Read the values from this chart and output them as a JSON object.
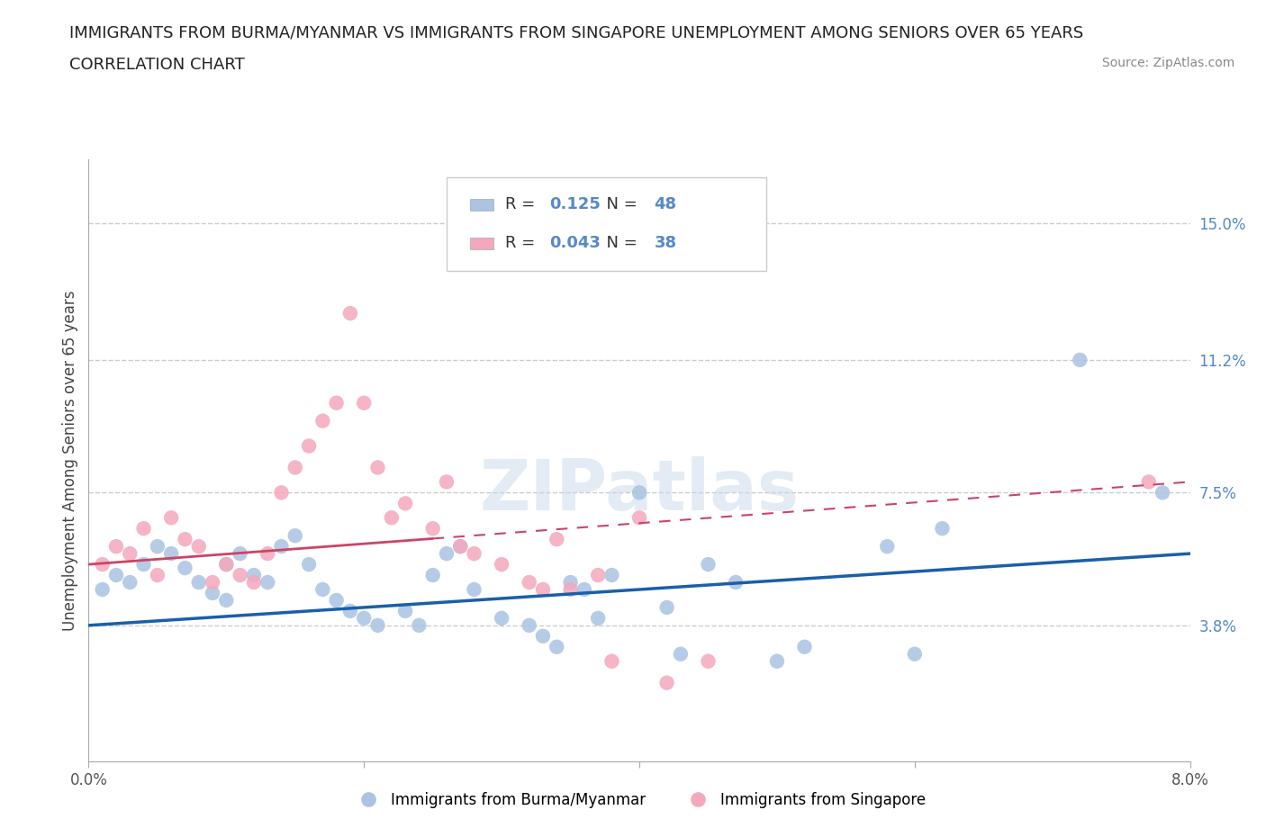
{
  "title_line1": "IMMIGRANTS FROM BURMA/MYANMAR VS IMMIGRANTS FROM SINGAPORE UNEMPLOYMENT AMONG SENIORS OVER 65 YEARS",
  "title_line2": "CORRELATION CHART",
  "source_text": "Source: ZipAtlas.com",
  "ylabel": "Unemployment Among Seniors over 65 years",
  "xlim": [
    0.0,
    0.08
  ],
  "ylim": [
    0.0,
    0.168
  ],
  "y_tick_labels_right": [
    "15.0%",
    "11.2%",
    "7.5%",
    "3.8%"
  ],
  "y_tick_values_right": [
    0.15,
    0.112,
    0.075,
    0.038
  ],
  "R_burma": 0.125,
  "N_burma": 48,
  "R_singapore": 0.043,
  "N_singapore": 38,
  "color_burma": "#aac4e2",
  "color_singapore": "#f4a8be",
  "color_burma_line": "#1a5faa",
  "color_singapore_line": "#cc4466",
  "legend_label_burma": "Immigrants from Burma/Myanmar",
  "legend_label_singapore": "Immigrants from Singapore",
  "watermark": "ZIPatlas",
  "burma_x": [
    0.001,
    0.002,
    0.003,
    0.004,
    0.005,
    0.006,
    0.007,
    0.008,
    0.009,
    0.01,
    0.01,
    0.011,
    0.012,
    0.013,
    0.014,
    0.015,
    0.016,
    0.017,
    0.018,
    0.019,
    0.02,
    0.021,
    0.023,
    0.024,
    0.025,
    0.026,
    0.027,
    0.028,
    0.03,
    0.032,
    0.033,
    0.034,
    0.035,
    0.036,
    0.037,
    0.038,
    0.04,
    0.042,
    0.043,
    0.045,
    0.047,
    0.05,
    0.052,
    0.058,
    0.06,
    0.062,
    0.072,
    0.078
  ],
  "burma_y": [
    0.048,
    0.052,
    0.05,
    0.055,
    0.06,
    0.058,
    0.054,
    0.05,
    0.047,
    0.045,
    0.055,
    0.058,
    0.052,
    0.05,
    0.06,
    0.063,
    0.055,
    0.048,
    0.045,
    0.042,
    0.04,
    0.038,
    0.042,
    0.038,
    0.052,
    0.058,
    0.06,
    0.048,
    0.04,
    0.038,
    0.035,
    0.032,
    0.05,
    0.048,
    0.04,
    0.052,
    0.075,
    0.043,
    0.03,
    0.055,
    0.05,
    0.028,
    0.032,
    0.06,
    0.03,
    0.065,
    0.112,
    0.075
  ],
  "singapore_x": [
    0.001,
    0.002,
    0.003,
    0.004,
    0.005,
    0.006,
    0.007,
    0.008,
    0.009,
    0.01,
    0.011,
    0.012,
    0.013,
    0.014,
    0.015,
    0.016,
    0.017,
    0.018,
    0.019,
    0.02,
    0.021,
    0.022,
    0.023,
    0.025,
    0.026,
    0.027,
    0.028,
    0.03,
    0.032,
    0.033,
    0.034,
    0.035,
    0.037,
    0.038,
    0.04,
    0.042,
    0.045,
    0.077
  ],
  "singapore_y": [
    0.055,
    0.06,
    0.058,
    0.065,
    0.052,
    0.068,
    0.062,
    0.06,
    0.05,
    0.055,
    0.052,
    0.05,
    0.058,
    0.075,
    0.082,
    0.088,
    0.095,
    0.1,
    0.125,
    0.1,
    0.082,
    0.068,
    0.072,
    0.065,
    0.078,
    0.06,
    0.058,
    0.055,
    0.05,
    0.048,
    0.062,
    0.048,
    0.052,
    0.028,
    0.068,
    0.022,
    0.028,
    0.078
  ],
  "burma_line_x": [
    0.0,
    0.08
  ],
  "burma_line_y": [
    0.038,
    0.058
  ],
  "singapore_line_x": [
    0.0,
    0.08
  ],
  "singapore_line_y": [
    0.055,
    0.078
  ]
}
